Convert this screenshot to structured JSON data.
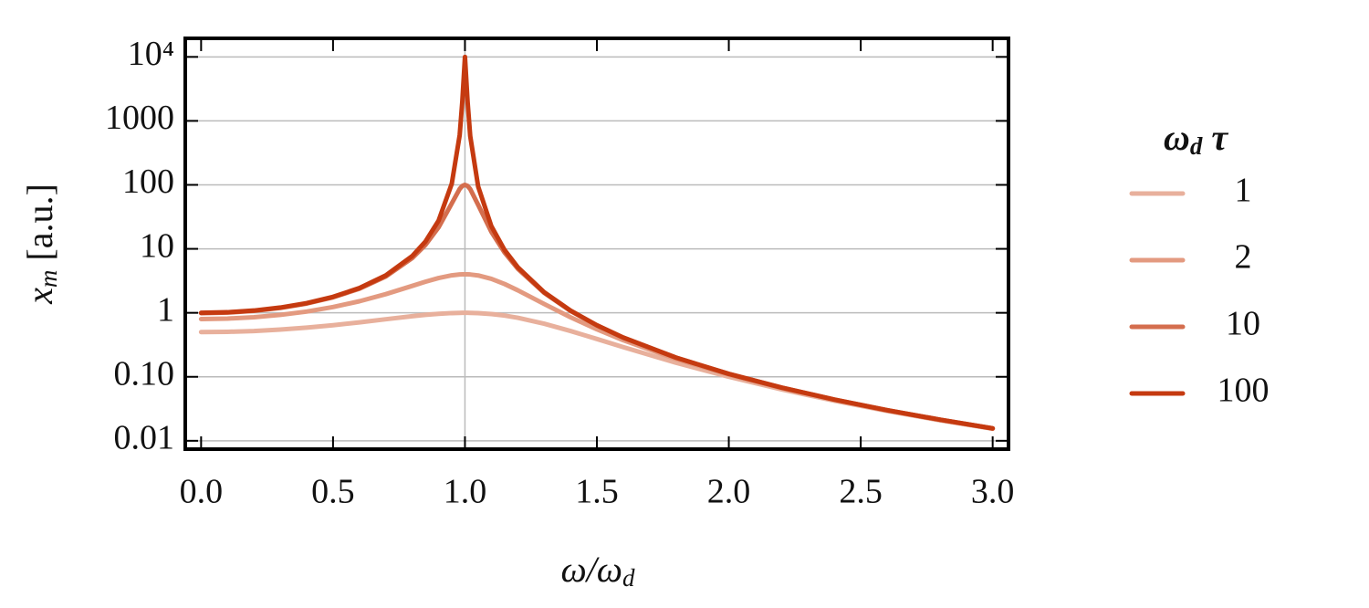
{
  "chart_data": {
    "type": "line",
    "xlabel": {
      "main": "ω/ω",
      "sub": "d"
    },
    "ylabel": {
      "main": "x",
      "sub": "m",
      "rest": " [a.u.]"
    },
    "legend_title": {
      "main": "ω",
      "sub": "d",
      "rest": " τ"
    },
    "legend": "right",
    "ylog": true,
    "grid": true,
    "x_gridlines": [
      1.0
    ],
    "xlim": [
      -0.06,
      3.06
    ],
    "ylim": [
      0.0074,
      19500
    ],
    "xticks": [
      {
        "value": 0,
        "label": "0.0"
      },
      {
        "value": 0.5,
        "label": "0.5"
      },
      {
        "value": 1,
        "label": "1.0"
      },
      {
        "value": 1.5,
        "label": "1.5"
      },
      {
        "value": 2,
        "label": "2.0"
      },
      {
        "value": 2.5,
        "label": "2.5"
      },
      {
        "value": 3,
        "label": "3.0"
      }
    ],
    "yticks": [
      {
        "value": 10000,
        "label": "10⁴"
      },
      1000,
      100,
      10,
      1,
      {
        "value": 0.1,
        "label": "0.10"
      },
      0.01
    ],
    "x": [
      0,
      0.1,
      0.2,
      0.3,
      0.4,
      0.5,
      0.6,
      0.7,
      0.8,
      0.85,
      0.9,
      0.95,
      0.98,
      0.99,
      1.0,
      1.01,
      1.02,
      1.05,
      1.1,
      1.15,
      1.2,
      1.3,
      1.4,
      1.5,
      1.6,
      1.8,
      2.0,
      2.2,
      2.4,
      2.6,
      2.8,
      3.0
    ],
    "series": [
      {
        "name": "1",
        "color": "#e8b09c",
        "values": [
          0.5,
          0.505,
          0.52,
          0.547,
          0.586,
          0.64,
          0.709,
          0.794,
          0.885,
          0.929,
          0.965,
          0.991,
          0.998,
          1.0,
          1,
          1.0,
          0.998,
          0.99,
          0.958,
          0.906,
          0.838,
          0.677,
          0.52,
          0.39,
          0.291,
          0.166,
          0.1,
          0.0635,
          0.0423,
          0.0292,
          0.0209,
          0.0154
        ]
      },
      {
        "name": "2",
        "color": "#e39a80",
        "values": [
          0.8,
          0.813,
          0.854,
          0.928,
          1.046,
          1.231,
          1.516,
          1.96,
          2.634,
          3.058,
          3.495,
          3.853,
          3.975,
          3.994,
          4,
          3.994,
          3.974,
          3.839,
          3.4,
          2.825,
          2.254,
          1.377,
          0.854,
          0.552,
          0.373,
          0.19,
          0.108,
          0.0667,
          0.0437,
          0.0299,
          0.0213,
          0.0156
        ]
      },
      {
        "name": "10",
        "color": "#d46e4e",
        "values": [
          0.99,
          1.01,
          1.073,
          1.193,
          1.397,
          1.747,
          2.383,
          3.702,
          7.163,
          11.49,
          21.69,
          51.27,
          86.45,
          96.19,
          100,
          96.12,
          85.97,
          48.77,
          18.48,
          8.772,
          4.912,
          2.057,
          1.073,
          0.636,
          0.409,
          0.1993,
          0.111,
          0.0678,
          0.0441,
          0.0301,
          0.02137,
          0.01562
        ]
      },
      {
        "name": "100",
        "color": "#c53a10",
        "values": [
          0.9999,
          1.02,
          1.085,
          1.208,
          1.417,
          1.777,
          2.441,
          3.843,
          7.71,
          12.97,
          27.62,
          104.1,
          599.5,
          2016,
          10000,
          1984,
          577.4,
          94.29,
          22.62,
          9.606,
          5.163,
          2.1,
          1.085,
          0.64,
          0.411,
          0.1993,
          0.1111,
          0.0678,
          0.0441,
          0.0301,
          0.02137,
          0.01563
        ]
      }
    ]
  }
}
